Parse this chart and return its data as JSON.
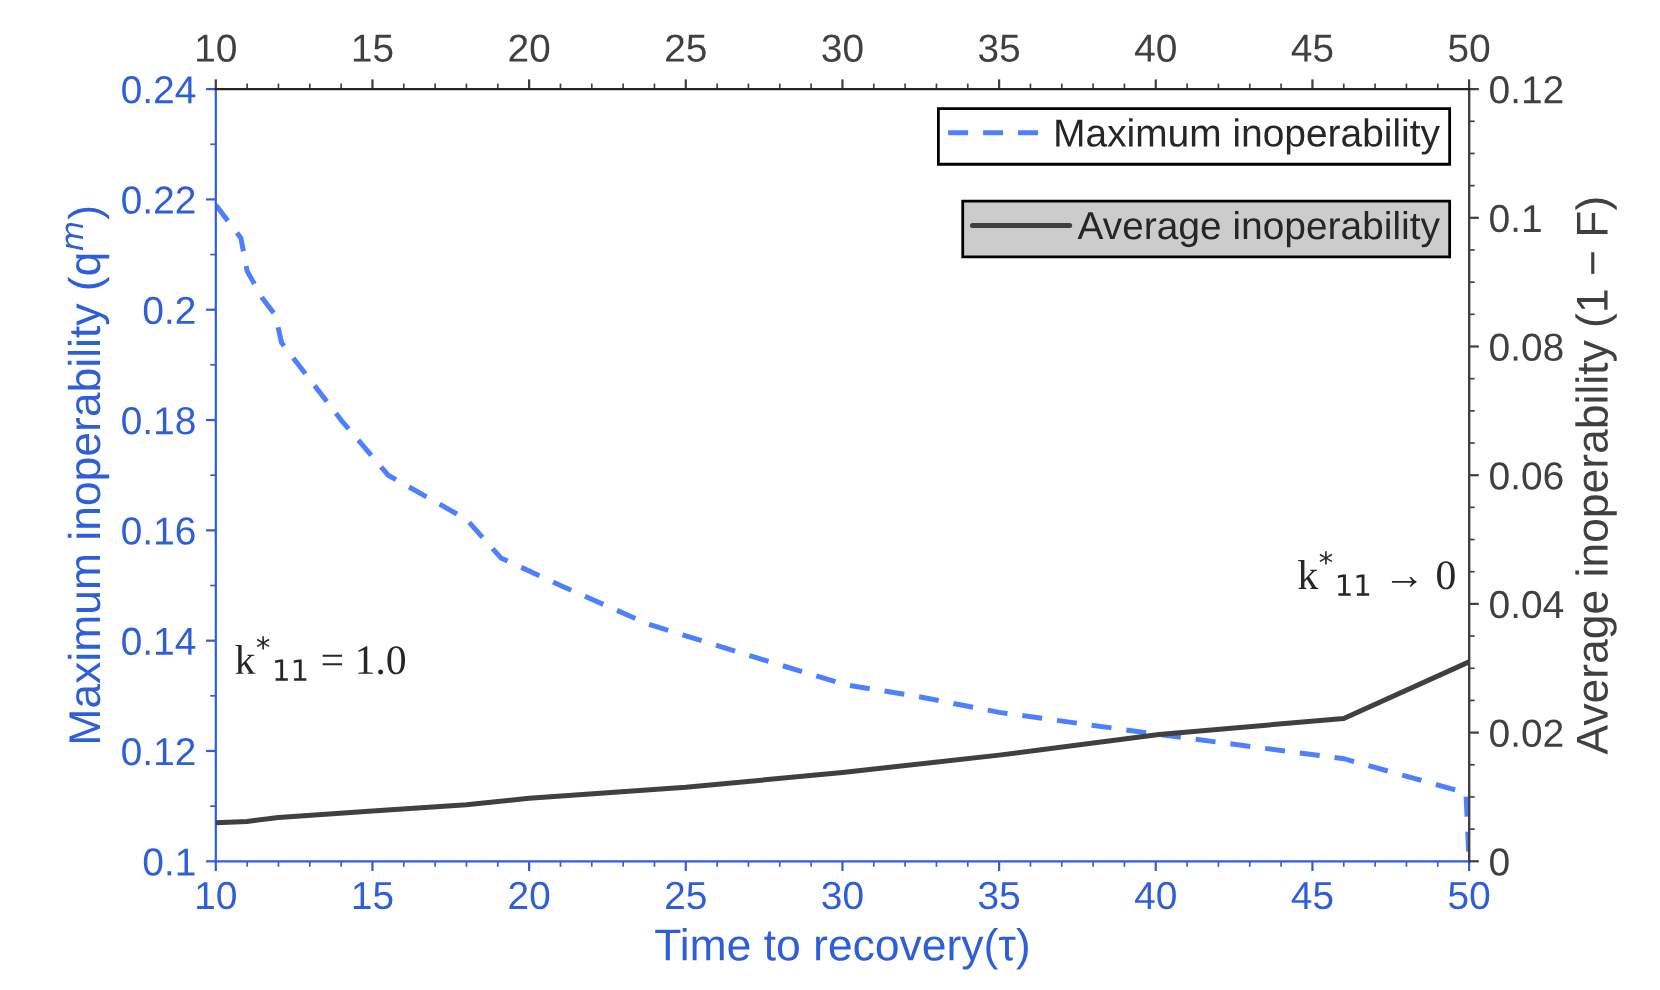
{
  "chart_data": {
    "type": "line",
    "xlabel": "Time to recovery(τ)",
    "ylabel": "Maximum inoperability (q$^{m}$)",
    "y2label": "Average inoperability (1 − F)",
    "xlim": [
      10,
      50
    ],
    "xticks": [
      10,
      15,
      20,
      25,
      30,
      35,
      40,
      45,
      50
    ],
    "x2lim": [
      10,
      50
    ],
    "x2ticks": [
      10,
      15,
      20,
      25,
      30,
      35,
      40,
      45,
      50
    ],
    "ylim": [
      0.1,
      0.24
    ],
    "yticks": [
      0.1,
      0.12,
      0.14,
      0.16,
      0.18,
      0.2,
      0.22,
      0.24
    ],
    "y2lim": [
      0,
      0.12
    ],
    "y2ticks": [
      0,
      0.02,
      0.04,
      0.06,
      0.08,
      0.1,
      0.12
    ],
    "legend": "top right",
    "grid": false,
    "series": [
      {
        "name": "Maximum inoperability",
        "color": "#4d7fff",
        "line_style": "dashed",
        "x": [
          10,
          10.8,
          11,
          11.5,
          11.9,
          12.1,
          14,
          15.5,
          18,
          19.1,
          21,
          23.8,
          27.2,
          30.1,
          32.3,
          35,
          40.1,
          46,
          49.9,
          50
        ],
        "values": [
          0.219,
          0.213,
          0.207,
          0.202,
          0.199,
          0.194,
          0.18,
          0.17,
          0.162,
          0.155,
          0.15,
          0.143,
          0.137,
          0.132,
          0.13,
          0.127,
          0.123,
          0.1186,
          0.1124,
          0.1
        ]
      },
      {
        "name": "Average inoperability",
        "color": "#404040",
        "line_style": "solid",
        "axis": "y2",
        "x": [
          10,
          11,
          12,
          15,
          18,
          20,
          25,
          30,
          35,
          40.1,
          46,
          50
        ],
        "values": [
          0.006,
          0.0062,
          0.0068,
          0.0078,
          0.0088,
          0.0098,
          0.0115,
          0.0138,
          0.0165,
          0.0197,
          0.0222,
          0.031
        ]
      }
    ],
    "annotations": [
      "k$^{*}$$_{11}$ = 1.0",
      "k$^{*}$$_{11}$ → 0"
    ]
  }
}
